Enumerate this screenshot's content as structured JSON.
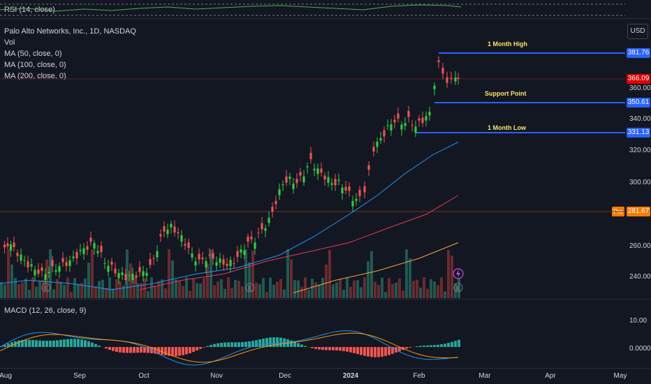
{
  "rsi_pane": {
    "label": "RSI (14, close)"
  },
  "main_pane": {
    "title": "Palo Alto Networks, Inc., 1D, NASDAQ",
    "indicators": [
      "Vol",
      "MA (50, close, 0)",
      "MA (100, close, 0)",
      "MA (200, close, 0)"
    ],
    "currency": "USD",
    "price_labels": [
      "360.00",
      "340.00",
      "320.00",
      "300.00",
      "260.00",
      "240.00"
    ],
    "current_price": "366.09",
    "pre_label": "Pre",
    "pre_price": "281.67",
    "annotations": [
      {
        "label": "1 Month High",
        "price": "381.76"
      },
      {
        "label": "Support Point",
        "price": "350.61"
      },
      {
        "label": "1 Month Low",
        "price": "331.13"
      }
    ],
    "earnings_marker": "E"
  },
  "macd_pane": {
    "label": "MACD (12, 26, close, 9)",
    "price_labels": [
      "10.00",
      "0.0000"
    ]
  },
  "x_axis": {
    "labels": [
      "Aug",
      "Sep",
      "Oct",
      "Nov",
      "Dec",
      "2024",
      "Feb",
      "Mar",
      "Apr",
      "May"
    ]
  },
  "colors": {
    "background": "#131722",
    "bull": "#26a69a",
    "bear": "#ef5350",
    "up_candle": "#2ecc40",
    "ma50": "#2196f3",
    "ma100": "#e53950",
    "ma200": "#f0a830",
    "annotation_line": "#2962ff",
    "annotation_text": "#f5e663",
    "current_price_tag": "#e00000",
    "pre_tag": "#f57c00"
  }
}
